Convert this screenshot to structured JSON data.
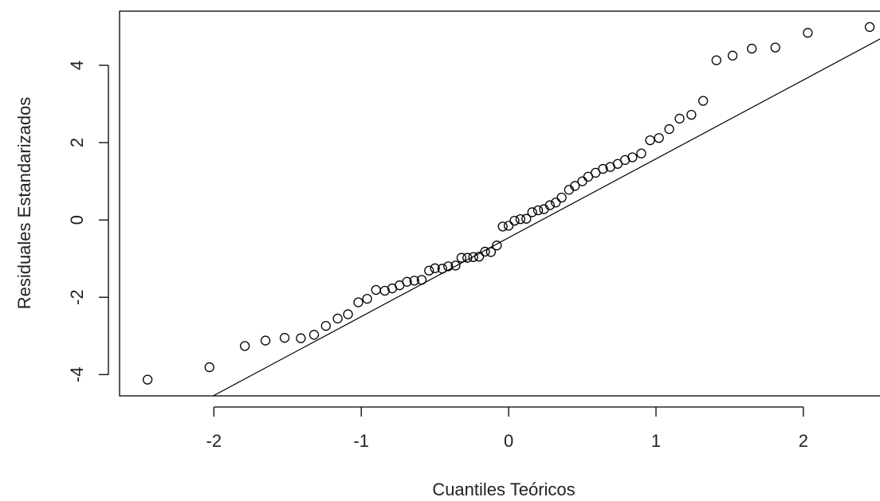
{
  "chart_data": {
    "type": "scatter",
    "title": "",
    "xlabel": "Cuantiles Teóricos",
    "ylabel": "Residuales Estandarizados",
    "xlim": [
      -2.64,
      2.52
    ],
    "ylim": [
      -4.55,
      5.4
    ],
    "xticks": [
      {
        "value": -2,
        "label": "-2"
      },
      {
        "value": -1,
        "label": "-1"
      },
      {
        "value": 0,
        "label": "0"
      },
      {
        "value": 1,
        "label": "1"
      },
      {
        "value": 2,
        "label": "2"
      }
    ],
    "yticks": [
      {
        "value": -4,
        "label": "-4"
      },
      {
        "value": -2,
        "label": "-2"
      },
      {
        "value": 0,
        "label": "0"
      },
      {
        "value": 2,
        "label": "2"
      },
      {
        "value": 4,
        "label": "4"
      }
    ],
    "grid": false,
    "reference_line": {
      "slope": 2.04,
      "intercept": -0.46
    },
    "points": [
      {
        "x": -2.45,
        "y": -4.13
      },
      {
        "x": -2.03,
        "y": -3.81
      },
      {
        "x": -1.79,
        "y": -3.26
      },
      {
        "x": -1.65,
        "y": -3.12
      },
      {
        "x": -1.52,
        "y": -3.05
      },
      {
        "x": -1.41,
        "y": -3.06
      },
      {
        "x": -1.32,
        "y": -2.97
      },
      {
        "x": -1.24,
        "y": -2.74
      },
      {
        "x": -1.16,
        "y": -2.55
      },
      {
        "x": -1.09,
        "y": -2.44
      },
      {
        "x": -1.02,
        "y": -2.13
      },
      {
        "x": -0.96,
        "y": -2.04
      },
      {
        "x": -0.9,
        "y": -1.81
      },
      {
        "x": -0.84,
        "y": -1.83
      },
      {
        "x": -0.79,
        "y": -1.77
      },
      {
        "x": -0.74,
        "y": -1.69
      },
      {
        "x": -0.69,
        "y": -1.6
      },
      {
        "x": -0.64,
        "y": -1.57
      },
      {
        "x": -0.59,
        "y": -1.55
      },
      {
        "x": -0.54,
        "y": -1.31
      },
      {
        "x": -0.5,
        "y": -1.25
      },
      {
        "x": -0.45,
        "y": -1.26
      },
      {
        "x": -0.41,
        "y": -1.2
      },
      {
        "x": -0.36,
        "y": -1.18
      },
      {
        "x": -0.32,
        "y": -0.98
      },
      {
        "x": -0.28,
        "y": -0.98
      },
      {
        "x": -0.24,
        "y": -0.96
      },
      {
        "x": -0.2,
        "y": -0.95
      },
      {
        "x": -0.16,
        "y": -0.82
      },
      {
        "x": -0.12,
        "y": -0.83
      },
      {
        "x": -0.08,
        "y": -0.66
      },
      {
        "x": -0.04,
        "y": -0.17
      },
      {
        "x": 0.0,
        "y": -0.15
      },
      {
        "x": 0.04,
        "y": -0.02
      },
      {
        "x": 0.08,
        "y": 0.02
      },
      {
        "x": 0.12,
        "y": 0.03
      },
      {
        "x": 0.16,
        "y": 0.2
      },
      {
        "x": 0.2,
        "y": 0.25
      },
      {
        "x": 0.24,
        "y": 0.28
      },
      {
        "x": 0.28,
        "y": 0.38
      },
      {
        "x": 0.32,
        "y": 0.45
      },
      {
        "x": 0.36,
        "y": 0.58
      },
      {
        "x": 0.41,
        "y": 0.78
      },
      {
        "x": 0.45,
        "y": 0.88
      },
      {
        "x": 0.5,
        "y": 1.0
      },
      {
        "x": 0.54,
        "y": 1.12
      },
      {
        "x": 0.59,
        "y": 1.22
      },
      {
        "x": 0.64,
        "y": 1.32
      },
      {
        "x": 0.69,
        "y": 1.37
      },
      {
        "x": 0.74,
        "y": 1.45
      },
      {
        "x": 0.79,
        "y": 1.55
      },
      {
        "x": 0.84,
        "y": 1.62
      },
      {
        "x": 0.9,
        "y": 1.72
      },
      {
        "x": 0.96,
        "y": 2.06
      },
      {
        "x": 1.02,
        "y": 2.12
      },
      {
        "x": 1.09,
        "y": 2.35
      },
      {
        "x": 1.16,
        "y": 2.62
      },
      {
        "x": 1.24,
        "y": 2.72
      },
      {
        "x": 1.32,
        "y": 3.08
      },
      {
        "x": 1.41,
        "y": 4.13
      },
      {
        "x": 1.52,
        "y": 4.25
      },
      {
        "x": 1.65,
        "y": 4.43
      },
      {
        "x": 1.81,
        "y": 4.46
      },
      {
        "x": 2.03,
        "y": 4.84
      },
      {
        "x": 2.45,
        "y": 4.99
      }
    ]
  }
}
